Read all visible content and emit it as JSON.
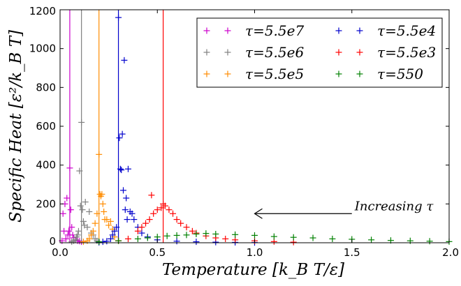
{
  "chart_data": {
    "type": "scatter",
    "title": "",
    "xlabel": "Temperature [k_B T/ε]",
    "ylabel": "Specific Heat [ε²/k_B T]",
    "xlim": [
      0.0,
      2.0
    ],
    "ylim": [
      0,
      1200
    ],
    "xticks": [
      0.0,
      0.5,
      1.0,
      1.5,
      2.0
    ],
    "xtick_labels": [
      "0.0",
      "0.5",
      "1.0",
      "1.5",
      "2.0"
    ],
    "yticks": [
      0,
      200,
      400,
      600,
      800,
      1000,
      1200
    ],
    "ytick_labels": [
      "0",
      "200",
      "400",
      "600",
      "800",
      "1000",
      "1200"
    ],
    "marker": "plus",
    "grid": false,
    "legend_placement": "top-right",
    "legend_columns": 2,
    "annotation": {
      "text": "Increasing τ",
      "arrow_from": [
        1.5,
        150
      ],
      "arrow_to": [
        1.0,
        150
      ]
    },
    "series": [
      {
        "name": "τ=5.5e7",
        "color": "#cc00cc",
        "peak_vline_x": 0.05,
        "x": [
          0.01,
          0.015,
          0.02,
          0.025,
          0.03,
          0.035,
          0.04,
          0.045,
          0.05,
          0.055,
          0.06,
          0.065,
          0.07,
          0.08,
          0.09,
          0.1,
          0.11
        ],
        "y": [
          10,
          150,
          60,
          200,
          20,
          230,
          40,
          60,
          385,
          170,
          80,
          40,
          25,
          15,
          10,
          8,
          5
        ]
      },
      {
        "name": "τ=5.5e6",
        "color": "#808080",
        "peak_vline_x": 0.11,
        "x": [
          0.06,
          0.07,
          0.08,
          0.085,
          0.09,
          0.095,
          0.1,
          0.105,
          0.11,
          0.115,
          0.12,
          0.125,
          0.13,
          0.14,
          0.15,
          0.16,
          0.17,
          0.18,
          0.19,
          0.2
        ],
        "y": [
          5,
          10,
          15,
          30,
          40,
          60,
          370,
          190,
          620,
          170,
          110,
          90,
          210,
          80,
          160,
          50,
          40,
          20,
          10,
          5
        ]
      },
      {
        "name": "τ=5.5e5",
        "color": "#ff8c00",
        "peak_vline_x": 0.2,
        "x": [
          0.12,
          0.14,
          0.15,
          0.16,
          0.17,
          0.18,
          0.19,
          0.2,
          0.205,
          0.21,
          0.215,
          0.22,
          0.225,
          0.23,
          0.24,
          0.25,
          0.26,
          0.27,
          0.28,
          0.3
        ],
        "y": [
          5,
          10,
          20,
          40,
          60,
          100,
          150,
          455,
          250,
          240,
          250,
          200,
          160,
          120,
          120,
          90,
          110,
          70,
          30,
          10
        ]
      },
      {
        "name": "τ=5.5e4",
        "color": "#0000cc",
        "peak_vline_x": 0.3,
        "x": [
          0.2,
          0.22,
          0.24,
          0.26,
          0.27,
          0.28,
          0.29,
          0.3,
          0.305,
          0.31,
          0.315,
          0.32,
          0.325,
          0.33,
          0.335,
          0.34,
          0.345,
          0.35,
          0.36,
          0.37,
          0.38,
          0.4,
          0.42,
          0.45,
          0.5,
          0.6,
          0.7,
          0.8,
          0.9,
          1.0
        ],
        "y": [
          2,
          5,
          8,
          20,
          40,
          60,
          80,
          1160,
          540,
          380,
          375,
          560,
          270,
          940,
          170,
          230,
          120,
          380,
          160,
          150,
          120,
          80,
          50,
          30,
          15,
          8,
          5,
          3,
          2,
          1
        ]
      },
      {
        "name": "τ=5.5e3",
        "color": "#ff0000",
        "peak_vline_x": 0.53,
        "x": [
          0.3,
          0.35,
          0.4,
          0.42,
          0.44,
          0.46,
          0.47,
          0.48,
          0.5,
          0.52,
          0.53,
          0.54,
          0.56,
          0.58,
          0.6,
          0.62,
          0.65,
          0.68,
          0.7,
          0.75,
          0.8,
          0.85,
          0.9,
          1.0,
          1.1,
          1.2
        ],
        "y": [
          10,
          20,
          60,
          80,
          100,
          120,
          245,
          150,
          170,
          180,
          200,
          190,
          170,
          150,
          120,
          100,
          80,
          60,
          50,
          35,
          25,
          20,
          15,
          10,
          6,
          3
        ]
      },
      {
        "name": "τ=550",
        "color": "#008000",
        "peak_vline_x": null,
        "x": [
          0.2,
          0.3,
          0.4,
          0.45,
          0.5,
          0.55,
          0.6,
          0.65,
          0.7,
          0.75,
          0.8,
          0.9,
          1.0,
          1.1,
          1.2,
          1.3,
          1.4,
          1.5,
          1.6,
          1.7,
          1.8,
          1.9,
          2.0
        ],
        "y": [
          5,
          10,
          20,
          25,
          30,
          35,
          38,
          40,
          45,
          48,
          45,
          42,
          38,
          32,
          28,
          25,
          20,
          18,
          15,
          12,
          10,
          8,
          6
        ]
      }
    ]
  }
}
